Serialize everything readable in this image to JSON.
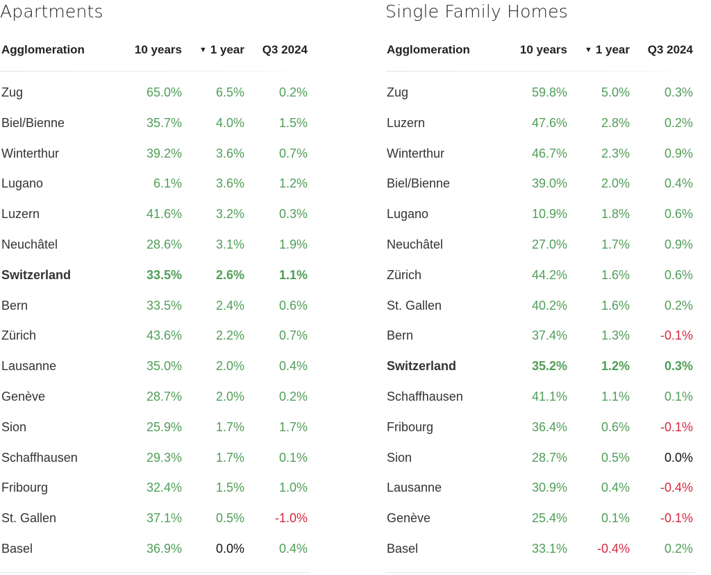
{
  "colors": {
    "positive": "#4f9e57",
    "negative": "#d8283f",
    "zero": "#111111"
  },
  "chart_data": [
    {
      "type": "table",
      "title": "Apartments",
      "columns": [
        "Agglomeration",
        "10 years",
        "1 year",
        "Q3 2024"
      ],
      "sorted_column": "1 year",
      "sort_icon": "sort-descending-icon",
      "rows": [
        {
          "name": "Zug",
          "ten_years": "65.0%",
          "one_year": "6.5%",
          "q3_2024": "0.2%"
        },
        {
          "name": "Biel/Bienne",
          "ten_years": "35.7%",
          "one_year": "4.0%",
          "q3_2024": "1.5%"
        },
        {
          "name": "Winterthur",
          "ten_years": "39.2%",
          "one_year": "3.6%",
          "q3_2024": "0.7%"
        },
        {
          "name": "Lugano",
          "ten_years": "6.1%",
          "one_year": "3.6%",
          "q3_2024": "1.2%"
        },
        {
          "name": "Luzern",
          "ten_years": "41.6%",
          "one_year": "3.2%",
          "q3_2024": "0.3%"
        },
        {
          "name": "Neuchâtel",
          "ten_years": "28.6%",
          "one_year": "3.1%",
          "q3_2024": "1.9%"
        },
        {
          "name": "Switzerland",
          "ten_years": "33.5%",
          "one_year": "2.6%",
          "q3_2024": "1.1%",
          "emphasis": true
        },
        {
          "name": "Bern",
          "ten_years": "33.5%",
          "one_year": "2.4%",
          "q3_2024": "0.6%"
        },
        {
          "name": "Zürich",
          "ten_years": "43.6%",
          "one_year": "2.2%",
          "q3_2024": "0.7%"
        },
        {
          "name": "Lausanne",
          "ten_years": "35.0%",
          "one_year": "2.0%",
          "q3_2024": "0.4%"
        },
        {
          "name": "Genève",
          "ten_years": "28.7%",
          "one_year": "2.0%",
          "q3_2024": "0.2%"
        },
        {
          "name": "Sion",
          "ten_years": "25.9%",
          "one_year": "1.7%",
          "q3_2024": "1.7%"
        },
        {
          "name": "Schaffhausen",
          "ten_years": "29.3%",
          "one_year": "1.7%",
          "q3_2024": "0.1%"
        },
        {
          "name": "Fribourg",
          "ten_years": "32.4%",
          "one_year": "1.5%",
          "q3_2024": "1.0%"
        },
        {
          "name": "St. Gallen",
          "ten_years": "37.1%",
          "one_year": "0.5%",
          "q3_2024": "-1.0%"
        },
        {
          "name": "Basel",
          "ten_years": "36.9%",
          "one_year": "0.0%",
          "q3_2024": "0.4%"
        }
      ]
    },
    {
      "type": "table",
      "title": "Single Family Homes",
      "columns": [
        "Agglomeration",
        "10 years",
        "1 year",
        "Q3 2024"
      ],
      "sorted_column": "1 year",
      "sort_icon": "sort-descending-icon",
      "rows": [
        {
          "name": "Zug",
          "ten_years": "59.8%",
          "one_year": "5.0%",
          "q3_2024": "0.3%"
        },
        {
          "name": "Luzern",
          "ten_years": "47.6%",
          "one_year": "2.8%",
          "q3_2024": "0.2%"
        },
        {
          "name": "Winterthur",
          "ten_years": "46.7%",
          "one_year": "2.3%",
          "q3_2024": "0.9%"
        },
        {
          "name": "Biel/Bienne",
          "ten_years": "39.0%",
          "one_year": "2.0%",
          "q3_2024": "0.4%"
        },
        {
          "name": "Lugano",
          "ten_years": "10.9%",
          "one_year": "1.8%",
          "q3_2024": "0.6%"
        },
        {
          "name": "Neuchâtel",
          "ten_years": "27.0%",
          "one_year": "1.7%",
          "q3_2024": "0.9%"
        },
        {
          "name": "Zürich",
          "ten_years": "44.2%",
          "one_year": "1.6%",
          "q3_2024": "0.6%"
        },
        {
          "name": "St. Gallen",
          "ten_years": "40.2%",
          "one_year": "1.6%",
          "q3_2024": "0.2%"
        },
        {
          "name": "Bern",
          "ten_years": "37.4%",
          "one_year": "1.3%",
          "q3_2024": "-0.1%"
        },
        {
          "name": "Switzerland",
          "ten_years": "35.2%",
          "one_year": "1.2%",
          "q3_2024": "0.3%",
          "emphasis": true
        },
        {
          "name": "Schaffhausen",
          "ten_years": "41.1%",
          "one_year": "1.1%",
          "q3_2024": "0.1%"
        },
        {
          "name": "Fribourg",
          "ten_years": "36.4%",
          "one_year": "0.6%",
          "q3_2024": "-0.1%"
        },
        {
          "name": "Sion",
          "ten_years": "28.7%",
          "one_year": "0.5%",
          "q3_2024": "0.0%"
        },
        {
          "name": "Lausanne",
          "ten_years": "30.9%",
          "one_year": "0.4%",
          "q3_2024": "-0.4%"
        },
        {
          "name": "Genève",
          "ten_years": "25.4%",
          "one_year": "0.1%",
          "q3_2024": "-0.1%"
        },
        {
          "name": "Basel",
          "ten_years": "33.1%",
          "one_year": "-0.4%",
          "q3_2024": "0.2%"
        }
      ]
    }
  ]
}
